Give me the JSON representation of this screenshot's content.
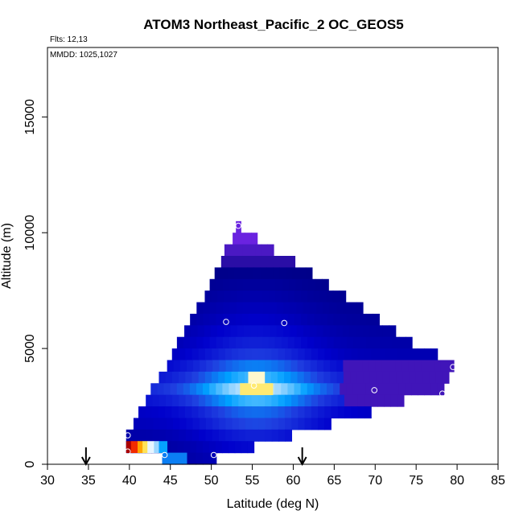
{
  "chart_data": {
    "type": "heatmap",
    "title": "ATOM3 Northeast_Pacific_2 OC_GEOS5",
    "flights_label": "Flts: 12,13",
    "dates_label": "MMDD: 1025,1027",
    "xlabel": "Latitude (deg N)",
    "ylabel": "Altitude (m)",
    "xlim": [
      30,
      85
    ],
    "ylim": [
      0,
      18000
    ],
    "xticks": [
      "30",
      "35",
      "40",
      "45",
      "50",
      "55",
      "60",
      "65",
      "70",
      "75",
      "80",
      "85"
    ],
    "yticks": [
      "0",
      "5000",
      "10000",
      "15000"
    ],
    "grid": false,
    "colormap": [
      "#00007f",
      "#0000cc",
      "#1f3fe0",
      "#00a0ff",
      "#9fd8ff",
      "#ffffff",
      "#ffe75e",
      "#ffa500",
      "#ff3300",
      "#aa0000"
    ],
    "purple_color": "#6a23e0",
    "cell_height_m": 500,
    "rows": [
      {
        "y": 10250,
        "x0": 53,
        "x1": 53.6,
        "v": -1
      },
      {
        "y": 9750,
        "x0": 52.6,
        "x1": 55.6,
        "v": -1
      },
      {
        "y": 9250,
        "x0": 51.6,
        "x1": 57.6,
        "v": -0.7
      },
      {
        "y": 8750,
        "x0": 51.2,
        "x1": 60.2,
        "v": -0.4
      },
      {
        "y": 8250,
        "x0": 50.4,
        "x1": 62.3,
        "v": 0.2
      },
      {
        "y": 7750,
        "x0": 49.8,
        "x1": 64.3,
        "v": 0.4
      },
      {
        "y": 7250,
        "x0": 49.2,
        "x1": 66.4,
        "v": 0.6
      },
      {
        "y": 6750,
        "x0": 48.2,
        "x1": 68.5,
        "v": 0.8
      },
      {
        "y": 6250,
        "x0": 47.4,
        "x1": 70.5,
        "v": 1.0
      },
      {
        "y": 5750,
        "x0": 46.7,
        "x1": 72.5,
        "v": 1.3
      },
      {
        "y": 5250,
        "x0": 45.8,
        "x1": 74.5,
        "v": 1.6
      },
      {
        "y": 4750,
        "x0": 45.2,
        "x1": 77.6,
        "v": 2.0
      },
      {
        "y": 4250,
        "x0": 44.6,
        "x1": 79.6,
        "v": 2.8
      },
      {
        "y": 3750,
        "x0": 43.6,
        "x1": 79.0,
        "v": 3.6
      },
      {
        "y": 3250,
        "x0": 42.6,
        "x1": 78.4,
        "v": 4.6
      },
      {
        "y": 2750,
        "x0": 42.0,
        "x1": 73.5,
        "v": 3.6
      },
      {
        "y": 2250,
        "x0": 41.1,
        "x1": 69.5,
        "v": 2.6
      },
      {
        "y": 1750,
        "x0": 40.5,
        "x1": 64.6,
        "v": 2.2
      },
      {
        "y": 1250,
        "x0": 39.6,
        "x1": 59.8,
        "v": 1.6
      },
      {
        "y": 750,
        "x0": 39.6,
        "x1": 55.2,
        "v": 1.2
      },
      {
        "y": 250,
        "x0": 44.0,
        "x1": 50.6,
        "v": 1.0
      }
    ],
    "hot_cells": [
      {
        "y": 3250,
        "x0": 53.5,
        "x1": 57.5,
        "v": 6.2
      },
      {
        "y": 3750,
        "x0": 54.5,
        "x1": 56.5,
        "v": 5.6
      },
      {
        "y": 750,
        "x0": 39.6,
        "x1": 40.2,
        "v": 9.5
      },
      {
        "y": 750,
        "x0": 40.2,
        "x1": 41.0,
        "v": 8.6
      },
      {
        "y": 750,
        "x0": 41.0,
        "x1": 41.6,
        "v": 7.4
      },
      {
        "y": 750,
        "x0": 41.6,
        "x1": 42.2,
        "v": 6.4
      },
      {
        "y": 750,
        "x0": 42.2,
        "x1": 43.0,
        "v": 5.0
      },
      {
        "y": 750,
        "x0": 43.0,
        "x1": 43.6,
        "v": 4.2
      },
      {
        "y": 750,
        "x0": 43.6,
        "x1": 44.6,
        "v": 3.2
      },
      {
        "y": 250,
        "x0": 44.0,
        "x1": 47.0,
        "v": 2.8
      }
    ],
    "markers": [
      {
        "lat": 53.3,
        "alt": 10300
      },
      {
        "lat": 51.8,
        "alt": 6150
      },
      {
        "lat": 58.9,
        "alt": 6100
      },
      {
        "lat": 79.5,
        "alt": 4200
      },
      {
        "lat": 55.2,
        "alt": 3400
      },
      {
        "lat": 69.9,
        "alt": 3200
      },
      {
        "lat": 78.2,
        "alt": 3050
      },
      {
        "lat": 39.8,
        "alt": 1250
      },
      {
        "lat": 39.8,
        "alt": 550
      },
      {
        "lat": 44.3,
        "alt": 400
      },
      {
        "lat": 50.3,
        "alt": 400
      }
    ],
    "arrows": [
      34.7,
      61.1
    ]
  }
}
